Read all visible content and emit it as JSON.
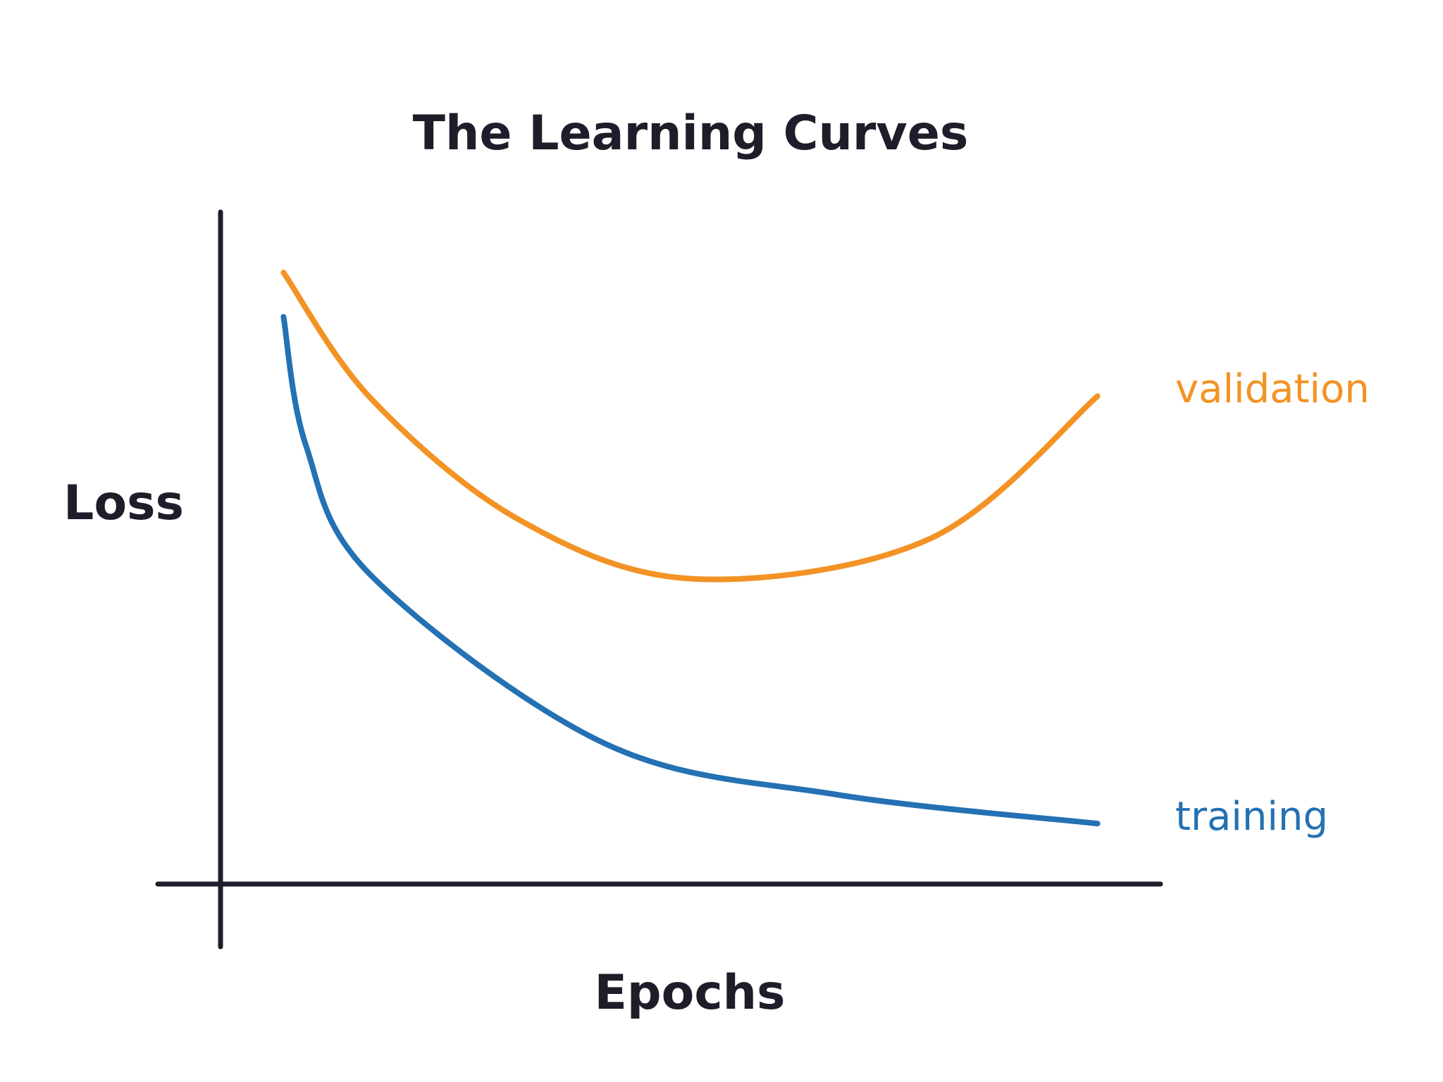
{
  "chart_data": {
    "type": "line",
    "title": "The Learning Curves",
    "xlabel": "Epochs",
    "ylabel": "Loss",
    "xlim": [
      0,
      100
    ],
    "ylim": [
      0,
      100
    ],
    "grid": false,
    "ticks": false,
    "legend": "inline-right",
    "series": [
      {
        "name": "validation",
        "color": "#f39325",
        "x": [
          6.7,
          16.1,
          31.9,
          50.5,
          75.5,
          93.3
        ],
        "y": [
          91,
          72.1,
          54.1,
          45.4,
          51.4,
          72.6
        ]
      },
      {
        "name": "training",
        "color": "#2471b3",
        "x": [
          6.7,
          9.1,
          16.1,
          40.9,
          65.6,
          93.3
        ],
        "y": [
          84.4,
          65.2,
          45.8,
          20.9,
          13.3,
          9.0
        ]
      }
    ],
    "axis_color": "#1e1e2a"
  }
}
